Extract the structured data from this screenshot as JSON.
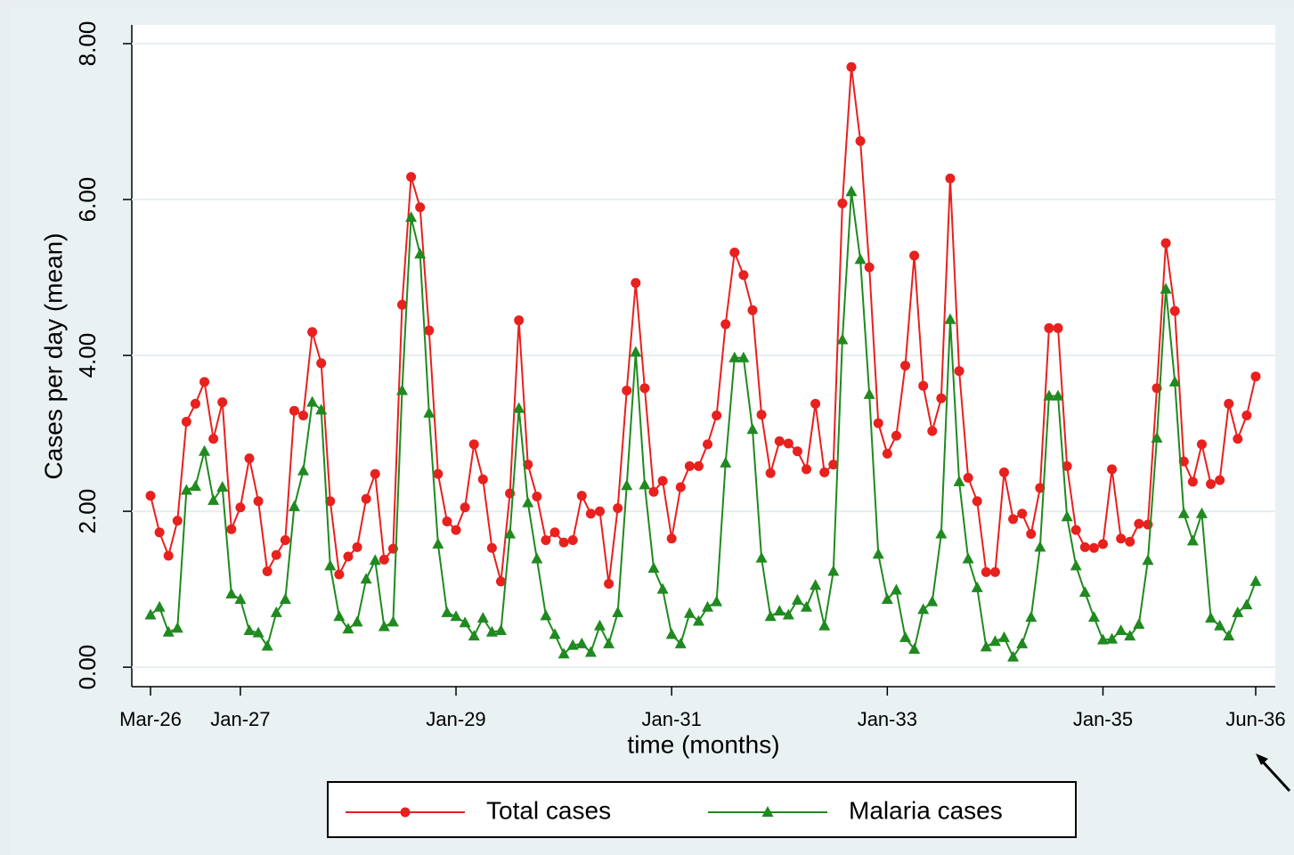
{
  "chart_data": {
    "type": "line",
    "y_label": "Cases per day (mean)",
    "x_label": "time (months)",
    "categories": [
      "Mar-26",
      null,
      null,
      null,
      null,
      null,
      null,
      null,
      null,
      null,
      "Jan-27",
      null,
      null,
      null,
      null,
      null,
      null,
      null,
      null,
      null,
      null,
      null,
      null,
      null,
      null,
      null,
      null,
      null,
      null,
      null,
      null,
      null,
      null,
      null,
      "Jan-29",
      null,
      null,
      null,
      null,
      null,
      null,
      null,
      null,
      null,
      null,
      null,
      null,
      null,
      null,
      null,
      null,
      null,
      null,
      null,
      null,
      null,
      null,
      null,
      "Jan-31",
      null,
      null,
      null,
      null,
      null,
      null,
      null,
      null,
      null,
      null,
      null,
      null,
      null,
      null,
      null,
      null,
      null,
      null,
      null,
      null,
      null,
      null,
      null,
      "Jan-33",
      null,
      null,
      null,
      null,
      null,
      null,
      null,
      null,
      null,
      null,
      null,
      null,
      null,
      null,
      null,
      null,
      null,
      null,
      null,
      null,
      null,
      null,
      null,
      "Jan-35",
      null,
      null,
      null,
      null,
      null,
      null,
      null,
      null,
      null,
      null,
      null,
      null,
      null,
      null,
      null,
      null,
      "Jun-36"
    ],
    "series": [
      {
        "name": "Total cases",
        "color": "#e8201e",
        "marker": "circle",
        "values": [
          2.2,
          1.73,
          1.43,
          1.88,
          3.15,
          3.38,
          3.66,
          2.93,
          3.4,
          1.77,
          2.05,
          2.68,
          2.13,
          1.23,
          1.44,
          1.63,
          3.29,
          3.23,
          4.3,
          3.9,
          2.13,
          1.19,
          1.42,
          1.54,
          2.16,
          2.48,
          1.38,
          1.52,
          4.65,
          6.29,
          5.9,
          4.32,
          2.48,
          1.87,
          1.76,
          2.05,
          2.86,
          2.41,
          1.53,
          1.1,
          2.23,
          4.45,
          2.6,
          2.19,
          1.63,
          1.73,
          1.6,
          1.63,
          2.2,
          1.97,
          2.0,
          1.07,
          2.04,
          3.55,
          4.93,
          3.58,
          2.25,
          2.39,
          1.65,
          2.31,
          2.58,
          2.58,
          2.86,
          3.23,
          4.4,
          5.32,
          5.03,
          4.58,
          3.24,
          2.49,
          2.9,
          2.87,
          2.77,
          2.54,
          3.38,
          2.5,
          2.6,
          5.95,
          7.7,
          6.75,
          5.13,
          3.13,
          2.74,
          2.97,
          3.87,
          5.28,
          3.61,
          3.03,
          3.45,
          6.27,
          3.8,
          2.43,
          2.13,
          1.22,
          1.22,
          2.5,
          1.9,
          1.97,
          1.71,
          2.3,
          4.35,
          4.35,
          2.58,
          1.76,
          1.54,
          1.53,
          1.58,
          2.54,
          1.65,
          1.61,
          1.84,
          1.83,
          3.58,
          5.44,
          4.57,
          2.64,
          2.38,
          2.86,
          2.35,
          2.4,
          3.38,
          2.93,
          3.23,
          3.73
        ]
      },
      {
        "name": "Malaria cases",
        "color": "#1f8a1f",
        "marker": "triangle",
        "values": [
          0.67,
          0.77,
          0.45,
          0.5,
          2.27,
          2.32,
          2.77,
          2.14,
          2.31,
          0.94,
          0.87,
          0.47,
          0.44,
          0.27,
          0.7,
          0.87,
          2.06,
          2.52,
          3.4,
          3.3,
          1.3,
          0.65,
          0.49,
          0.58,
          1.13,
          1.37,
          0.52,
          0.58,
          3.55,
          5.77,
          5.3,
          3.26,
          1.58,
          0.7,
          0.65,
          0.57,
          0.4,
          0.63,
          0.45,
          0.47,
          1.71,
          3.32,
          2.11,
          1.39,
          0.66,
          0.42,
          0.17,
          0.28,
          0.3,
          0.19,
          0.53,
          0.3,
          0.7,
          2.33,
          4.04,
          2.34,
          1.27,
          1.0,
          0.42,
          0.3,
          0.69,
          0.59,
          0.77,
          0.84,
          2.62,
          3.97,
          3.97,
          3.05,
          1.4,
          0.65,
          0.72,
          0.67,
          0.86,
          0.77,
          1.05,
          0.53,
          1.23,
          4.2,
          6.1,
          5.23,
          3.5,
          1.45,
          0.87,
          0.99,
          0.38,
          0.23,
          0.74,
          0.84,
          1.71,
          4.46,
          2.38,
          1.39,
          1.02,
          0.26,
          0.33,
          0.38,
          0.13,
          0.3,
          0.64,
          1.54,
          3.48,
          3.48,
          1.93,
          1.3,
          0.96,
          0.64,
          0.35,
          0.36,
          0.47,
          0.4,
          0.55,
          1.37,
          2.94,
          4.85,
          3.66,
          1.97,
          1.62,
          1.97,
          0.63,
          0.53,
          0.4,
          0.7,
          0.8,
          1.1
        ]
      }
    ],
    "ylim": [
      -0.25,
      8.24
    ],
    "yticks": [
      {
        "value": 0,
        "label": "0.00"
      },
      {
        "value": 2,
        "label": "2.00"
      },
      {
        "value": 4,
        "label": "4.00"
      },
      {
        "value": 6,
        "label": "6.00"
      },
      {
        "value": 8,
        "label": "8.00"
      }
    ],
    "grid": true,
    "legend": "bottom"
  }
}
